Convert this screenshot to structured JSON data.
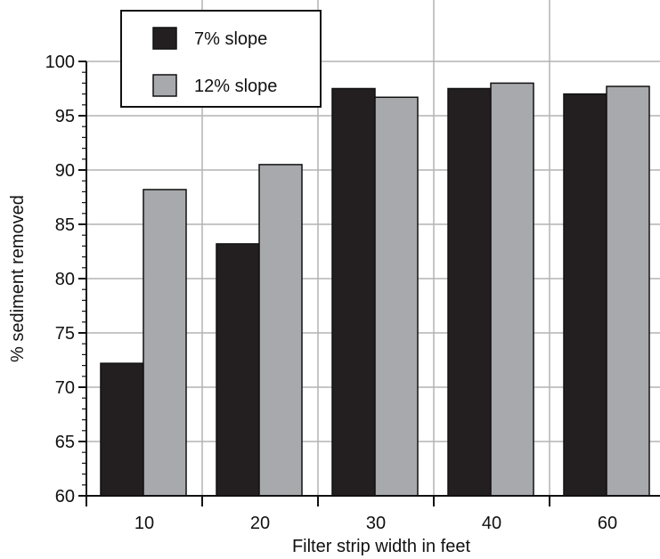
{
  "chart_data": {
    "type": "bar",
    "title": "",
    "xlabel": "Filter strip width in feet",
    "ylabel": "% sediment removed",
    "categories": [
      "10",
      "20",
      "30",
      "40",
      "60"
    ],
    "series": [
      {
        "name": "7% slope",
        "color": "#231f20",
        "values": [
          72.2,
          83.2,
          97.5,
          97.5,
          97.0
        ]
      },
      {
        "name": "12% slope",
        "color": "#a7a9ac",
        "values": [
          88.2,
          90.5,
          96.7,
          98.0,
          97.7
        ]
      }
    ],
    "ylim": [
      60,
      100
    ],
    "yticks": [
      "60",
      "65",
      "70",
      "75",
      "80",
      "85",
      "90",
      "95",
      "100"
    ],
    "grid": true,
    "legend_position": "top-left"
  }
}
